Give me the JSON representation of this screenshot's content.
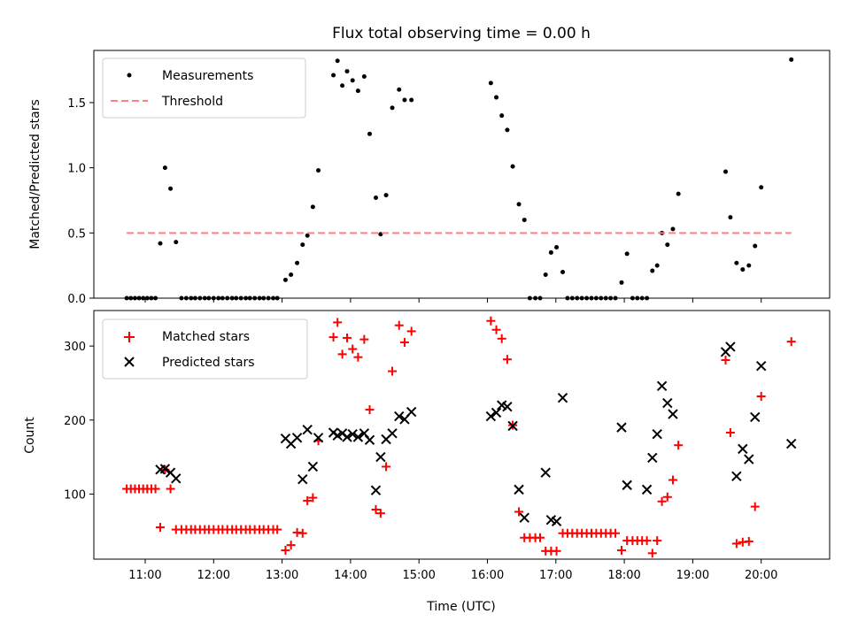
{
  "chart_data": [
    {
      "type": "scatter",
      "title": "Flux total observing time = 0.00 h",
      "xlabel": "",
      "ylabel": "Matched/Predicted stars",
      "xlim": [
        10.25,
        21.0
      ],
      "ylim": [
        0,
        1.9
      ],
      "yticks": [
        0,
        0.5,
        1.0,
        1.5
      ],
      "ytick_labels": [
        "0.0",
        "0.5",
        "1.0",
        "1.5"
      ],
      "xticks": [
        11,
        12,
        13,
        14,
        15,
        16,
        17,
        18,
        19,
        20
      ],
      "grid": false,
      "legend": "top-left",
      "series": [
        {
          "name": "Measurements",
          "color": "#000000",
          "marker": "dot",
          "points": [
            [
              10.73,
              0
            ],
            [
              10.79,
              0
            ],
            [
              10.85,
              0
            ],
            [
              10.91,
              0
            ],
            [
              10.97,
              0
            ],
            [
              11.03,
              0
            ],
            [
              11.09,
              0
            ],
            [
              11.15,
              0
            ],
            [
              11.22,
              0.42
            ],
            [
              11.29,
              1.0
            ],
            [
              11.37,
              0.84
            ],
            [
              11.45,
              0.43
            ],
            [
              11.53,
              0
            ],
            [
              11.6,
              0
            ],
            [
              11.67,
              0
            ],
            [
              11.73,
              0
            ],
            [
              11.8,
              0
            ],
            [
              11.87,
              0
            ],
            [
              11.93,
              0
            ],
            [
              12.0,
              0
            ],
            [
              12.07,
              0
            ],
            [
              12.13,
              0
            ],
            [
              12.2,
              0
            ],
            [
              12.27,
              0
            ],
            [
              12.33,
              0
            ],
            [
              12.4,
              0
            ],
            [
              12.47,
              0
            ],
            [
              12.53,
              0
            ],
            [
              12.6,
              0
            ],
            [
              12.67,
              0
            ],
            [
              12.73,
              0
            ],
            [
              12.8,
              0
            ],
            [
              12.87,
              0
            ],
            [
              12.93,
              0
            ],
            [
              13.05,
              0.14
            ],
            [
              13.13,
              0.18
            ],
            [
              13.22,
              0.27
            ],
            [
              13.3,
              0.41
            ],
            [
              13.37,
              0.48
            ],
            [
              13.45,
              0.7
            ],
            [
              13.53,
              0.98
            ],
            [
              13.75,
              1.71
            ],
            [
              13.81,
              1.82
            ],
            [
              13.88,
              1.63
            ],
            [
              13.95,
              1.74
            ],
            [
              14.03,
              1.67
            ],
            [
              14.11,
              1.59
            ],
            [
              14.2,
              1.7
            ],
            [
              14.28,
              1.26
            ],
            [
              14.37,
              0.77
            ],
            [
              14.44,
              0.49
            ],
            [
              14.52,
              0.79
            ],
            [
              14.61,
              1.46
            ],
            [
              14.71,
              1.6
            ],
            [
              14.79,
              1.52
            ],
            [
              14.89,
              1.52
            ],
            [
              16.05,
              1.65
            ],
            [
              16.13,
              1.54
            ],
            [
              16.21,
              1.4
            ],
            [
              16.29,
              1.29
            ],
            [
              16.37,
              1.01
            ],
            [
              16.46,
              0.72
            ],
            [
              16.54,
              0.6
            ],
            [
              16.62,
              0
            ],
            [
              16.7,
              0
            ],
            [
              16.77,
              0
            ],
            [
              16.85,
              0.18
            ],
            [
              16.93,
              0.35
            ],
            [
              17.01,
              0.39
            ],
            [
              17.1,
              0.2
            ],
            [
              17.17,
              0
            ],
            [
              17.24,
              0
            ],
            [
              17.31,
              0
            ],
            [
              17.38,
              0
            ],
            [
              17.45,
              0
            ],
            [
              17.52,
              0
            ],
            [
              17.59,
              0
            ],
            [
              17.66,
              0
            ],
            [
              17.73,
              0
            ],
            [
              17.8,
              0
            ],
            [
              17.87,
              0
            ],
            [
              17.96,
              0.12
            ],
            [
              18.04,
              0.34
            ],
            [
              18.12,
              0
            ],
            [
              18.19,
              0
            ],
            [
              18.26,
              0
            ],
            [
              18.33,
              0
            ],
            [
              18.41,
              0.21
            ],
            [
              18.48,
              0.25
            ],
            [
              18.55,
              0.5
            ],
            [
              18.63,
              0.41
            ],
            [
              18.71,
              0.53
            ],
            [
              18.79,
              0.8
            ],
            [
              19.48,
              0.97
            ],
            [
              19.55,
              0.62
            ],
            [
              19.64,
              0.27
            ],
            [
              19.73,
              0.22
            ],
            [
              19.82,
              0.25
            ],
            [
              19.91,
              0.4
            ],
            [
              20.0,
              0.85
            ],
            [
              20.44,
              1.83
            ]
          ]
        },
        {
          "name": "Threshold",
          "color": "#ff7f7f",
          "line_style": "dashed",
          "points": [
            [
              10.73,
              0.5
            ],
            [
              20.44,
              0.5
            ]
          ]
        }
      ]
    },
    {
      "type": "scatter",
      "title": "",
      "xlabel": "Time (UTC)",
      "ylabel": "Count",
      "xlim": [
        10.25,
        21.0
      ],
      "ylim": [
        12,
        348
      ],
      "yticks": [
        100,
        200,
        300
      ],
      "ytick_labels": [
        "100",
        "200",
        "300"
      ],
      "xticks": [
        11,
        12,
        13,
        14,
        15,
        16,
        17,
        18,
        19,
        20
      ],
      "xtick_labels": [
        "11:00",
        "12:00",
        "13:00",
        "14:00",
        "15:00",
        "16:00",
        "17:00",
        "18:00",
        "19:00",
        "20:00"
      ],
      "grid": false,
      "legend": "top-left",
      "series": [
        {
          "name": "Matched stars",
          "color": "#ff0000",
          "marker": "plus",
          "points": [
            [
              10.73,
              107
            ],
            [
              10.79,
              107
            ],
            [
              10.85,
              107
            ],
            [
              10.91,
              107
            ],
            [
              10.97,
              107
            ],
            [
              11.03,
              107
            ],
            [
              11.09,
              107
            ],
            [
              11.15,
              107
            ],
            [
              11.22,
              55
            ],
            [
              11.29,
              133
            ],
            [
              11.37,
              107
            ],
            [
              11.45,
              52
            ],
            [
              11.53,
              52
            ],
            [
              11.6,
              52
            ],
            [
              11.67,
              52
            ],
            [
              11.73,
              52
            ],
            [
              11.8,
              52
            ],
            [
              11.87,
              52
            ],
            [
              11.93,
              52
            ],
            [
              12.0,
              52
            ],
            [
              12.07,
              52
            ],
            [
              12.13,
              52
            ],
            [
              12.2,
              52
            ],
            [
              12.27,
              52
            ],
            [
              12.33,
              52
            ],
            [
              12.4,
              52
            ],
            [
              12.47,
              52
            ],
            [
              12.53,
              52
            ],
            [
              12.6,
              52
            ],
            [
              12.67,
              52
            ],
            [
              12.73,
              52
            ],
            [
              12.8,
              52
            ],
            [
              12.87,
              52
            ],
            [
              12.93,
              52
            ],
            [
              13.05,
              24
            ],
            [
              13.13,
              31
            ],
            [
              13.22,
              48
            ],
            [
              13.3,
              47
            ],
            [
              13.37,
              91
            ],
            [
              13.45,
              95
            ],
            [
              13.53,
              172
            ],
            [
              13.75,
              312
            ],
            [
              13.81,
              332
            ],
            [
              13.88,
              289
            ],
            [
              13.95,
              311
            ],
            [
              14.03,
              296
            ],
            [
              14.11,
              285
            ],
            [
              14.2,
              309
            ],
            [
              14.28,
              214
            ],
            [
              14.37,
              79
            ],
            [
              14.44,
              74
            ],
            [
              14.52,
              137
            ],
            [
              14.61,
              266
            ],
            [
              14.71,
              328
            ],
            [
              14.79,
              305
            ],
            [
              14.89,
              320
            ],
            [
              16.05,
              334
            ],
            [
              16.13,
              322
            ],
            [
              16.21,
              310
            ],
            [
              16.29,
              282
            ],
            [
              16.37,
              193
            ],
            [
              16.46,
              76
            ],
            [
              16.54,
              41
            ],
            [
              16.62,
              41
            ],
            [
              16.7,
              41
            ],
            [
              16.77,
              41
            ],
            [
              16.85,
              23
            ],
            [
              16.93,
              23
            ],
            [
              17.01,
              23
            ],
            [
              17.1,
              47
            ],
            [
              17.17,
              47
            ],
            [
              17.24,
              47
            ],
            [
              17.31,
              47
            ],
            [
              17.38,
              47
            ],
            [
              17.45,
              47
            ],
            [
              17.52,
              47
            ],
            [
              17.59,
              47
            ],
            [
              17.66,
              47
            ],
            [
              17.73,
              47
            ],
            [
              17.8,
              47
            ],
            [
              17.87,
              47
            ],
            [
              17.96,
              24
            ],
            [
              18.04,
              37
            ],
            [
              18.12,
              37
            ],
            [
              18.19,
              37
            ],
            [
              18.26,
              37
            ],
            [
              18.33,
              37
            ],
            [
              18.41,
              20
            ],
            [
              18.48,
              37
            ],
            [
              18.55,
              90
            ],
            [
              18.63,
              96
            ],
            [
              18.71,
              119
            ],
            [
              18.79,
              166
            ],
            [
              19.48,
              281
            ],
            [
              19.55,
              183
            ],
            [
              19.64,
              33
            ],
            [
              19.73,
              35
            ],
            [
              19.82,
              36
            ],
            [
              19.91,
              83
            ],
            [
              20.0,
              232
            ],
            [
              20.44,
              306
            ]
          ]
        },
        {
          "name": "Predicted stars",
          "color": "#000000",
          "marker": "x",
          "points": [
            [
              11.22,
              133
            ],
            [
              11.29,
              134
            ],
            [
              11.37,
              129
            ],
            [
              11.45,
              121
            ],
            [
              13.05,
              175
            ],
            [
              13.13,
              168
            ],
            [
              13.22,
              176
            ],
            [
              13.3,
              120
            ],
            [
              13.37,
              187
            ],
            [
              13.45,
              137
            ],
            [
              13.53,
              176
            ],
            [
              13.75,
              183
            ],
            [
              13.81,
              179
            ],
            [
              13.88,
              182
            ],
            [
              13.95,
              177
            ],
            [
              14.03,
              181
            ],
            [
              14.11,
              177
            ],
            [
              14.2,
              182
            ],
            [
              14.28,
              173
            ],
            [
              14.37,
              105
            ],
            [
              14.44,
              150
            ],
            [
              14.52,
              174
            ],
            [
              14.61,
              182
            ],
            [
              14.71,
              205
            ],
            [
              14.79,
              201
            ],
            [
              14.89,
              211
            ],
            [
              16.05,
              205
            ],
            [
              16.13,
              210
            ],
            [
              16.21,
              220
            ],
            [
              16.29,
              218
            ],
            [
              16.37,
              192
            ],
            [
              16.46,
              106
            ],
            [
              16.54,
              68
            ],
            [
              16.85,
              129
            ],
            [
              16.93,
              65
            ],
            [
              17.01,
              63
            ],
            [
              17.1,
              230
            ],
            [
              17.96,
              190
            ],
            [
              18.04,
              112
            ],
            [
              18.33,
              106
            ],
            [
              18.41,
              149
            ],
            [
              18.48,
              181
            ],
            [
              18.55,
              246
            ],
            [
              18.63,
              223
            ],
            [
              18.71,
              208
            ],
            [
              19.48,
              292
            ],
            [
              19.55,
              299
            ],
            [
              19.64,
              124
            ],
            [
              19.73,
              161
            ],
            [
              19.82,
              147
            ],
            [
              19.91,
              204
            ],
            [
              20.0,
              273
            ],
            [
              20.44,
              168
            ]
          ]
        }
      ]
    }
  ]
}
